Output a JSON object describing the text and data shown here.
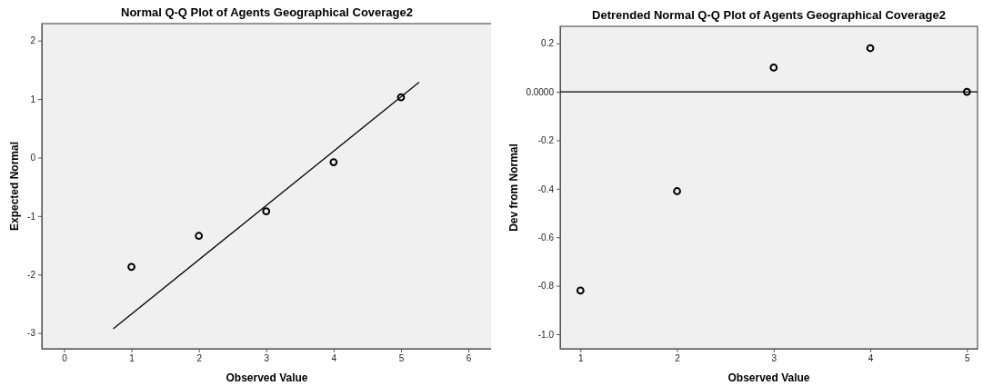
{
  "chart_data": [
    {
      "type": "scatter",
      "title": "Normal Q-Q Plot of Agents Geographical Coverage2",
      "xlabel": "Observed Value",
      "ylabel": "Expected Normal",
      "grid": false,
      "xlim": [
        -0.33,
        6.35
      ],
      "xticks": [
        0,
        1,
        2,
        3,
        4,
        5,
        6
      ],
      "ylim": [
        -3.27,
        2.29
      ],
      "yticks": [
        -3,
        -2,
        -1,
        0,
        1,
        2
      ],
      "series": [
        {
          "color": "#000000",
          "marker": "circle",
          "x": [
            1,
            2,
            3,
            4,
            5
          ],
          "values": [
            -1.87,
            -1.34,
            -0.92,
            -0.08,
            1.03
          ]
        },
        {
          "type": "line",
          "color": "#000000",
          "x": [
            0.73,
            5.27
          ],
          "values": [
            -2.93,
            1.29
          ]
        }
      ]
    },
    {
      "type": "scatter",
      "title": "Detrended Normal Q-Q Plot of Agents Geographical Coverage2",
      "xlabel": "Observed Value",
      "ylabel": "Dev from Normal",
      "marker": "circle",
      "grid": false,
      "xlim": [
        0.79,
        5.11
      ],
      "xticks": [
        1,
        2,
        3,
        4,
        5
      ],
      "ylim": [
        -1.06,
        0.27
      ],
      "yticks": [
        {
          "value": -1.0,
          "label": "-1.0"
        },
        {
          "value": -0.8,
          "label": "-0.8"
        },
        {
          "value": -0.6,
          "label": "-0.6"
        },
        {
          "value": -0.4,
          "label": "-0.4"
        },
        {
          "value": -0.2,
          "label": "-0.2"
        },
        {
          "value": 0,
          "label": "0.0000"
        },
        0.2
      ],
      "ref_lines": [
        {
          "axis": "y",
          "value": 0,
          "color": "#000000"
        }
      ],
      "series": [
        {
          "color": "#000000",
          "x": [
            1,
            2,
            3,
            4,
            5
          ],
          "values": [
            -0.82,
            -0.41,
            0.1,
            0.18,
            0
          ]
        }
      ]
    }
  ]
}
